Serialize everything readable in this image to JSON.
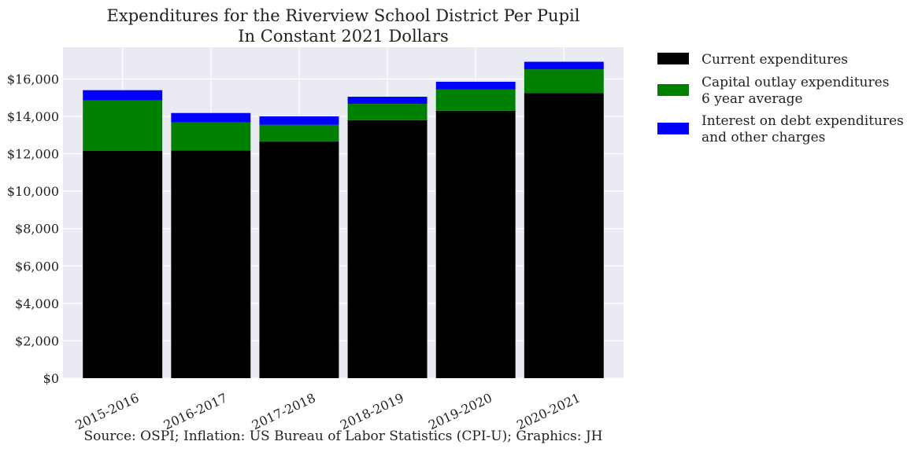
{
  "chart_data": {
    "type": "bar",
    "stacked": true,
    "title": [
      "Expenditures for the Riverview School District Per Pupil",
      "In Constant 2021 Dollars"
    ],
    "categories": [
      "2015-2016",
      "2016-2017",
      "2017-2018",
      "2018-2019",
      "2019-2020",
      "2020-2021"
    ],
    "series": [
      {
        "name": "Current expenditures",
        "color": "#000000",
        "values": [
          12150,
          12180,
          12650,
          13800,
          14300,
          15250
        ]
      },
      {
        "name": "Capital outlay expenditures\n6 year average",
        "color": "#008000",
        "values": [
          2700,
          1500,
          900,
          870,
          1150,
          1270
        ]
      },
      {
        "name": "Interest on debt expenditures\nand other charges",
        "color": "#0000ff",
        "values": [
          550,
          500,
          450,
          380,
          400,
          400
        ]
      }
    ],
    "ylim": [
      0,
      17700
    ],
    "yticks": [
      0,
      2000,
      4000,
      6000,
      8000,
      10000,
      12000,
      14000,
      16000
    ],
    "ytick_labels": [
      "$0",
      "$2,000",
      "$4,000",
      "$6,000",
      "$8,000",
      "$10,000",
      "$12,000",
      "$14,000",
      "$16,000"
    ],
    "xlabel": "",
    "ylabel": "",
    "grid": true,
    "legend_position": "outside-right",
    "plot_background": "#eaeaf2",
    "grid_color": "#ffffff"
  },
  "footer": {
    "source": "Source: OSPI; Inflation: US Bureau of Labor Statistics (CPI-U); Graphics: JH"
  }
}
